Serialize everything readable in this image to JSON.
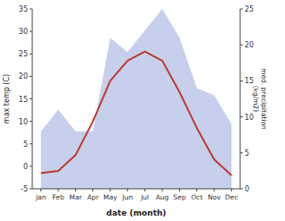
{
  "chart_data": {
    "type": "line",
    "categories": [
      "Jan",
      "Feb",
      "Mar",
      "Apr",
      "May",
      "Jun",
      "Jul",
      "Aug",
      "Sep",
      "Oct",
      "Nov",
      "Dec"
    ],
    "series": [
      {
        "type": "area",
        "axis": "y2",
        "color": "#b8c4e8",
        "values": [
          8,
          11,
          8,
          8,
          21,
          19,
          22,
          25,
          21,
          14,
          13,
          9
        ]
      },
      {
        "type": "line",
        "color": "#c0392b",
        "values": [
          -1.5,
          -1.0,
          2.5,
          10.0,
          19.0,
          23.5,
          25.5,
          23.5,
          16.5,
          8.5,
          1.5,
          -2.0
        ]
      }
    ],
    "xlabel": "date (month)",
    "ylabel": "max temp (C)",
    "y2label": "med. precipitation\n(kg/m2)",
    "ylim": [
      -5,
      35
    ],
    "yticks": [
      -5,
      0,
      5,
      10,
      15,
      20,
      25,
      30,
      35
    ],
    "y2lim": [
      0,
      25
    ],
    "y2ticks": [
      0,
      5,
      10,
      15,
      20,
      25
    ],
    "grid": false
  }
}
